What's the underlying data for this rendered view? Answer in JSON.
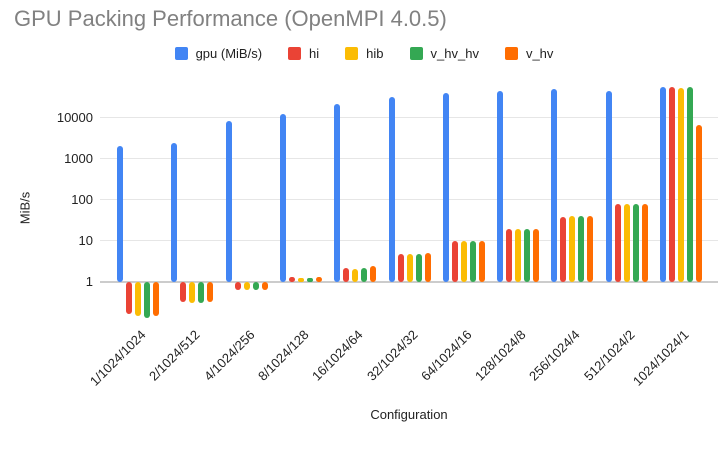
{
  "title": "GPU Packing Performance (OpenMPI 4.0.5)",
  "chart_data": {
    "type": "bar",
    "title": "GPU Packing Performance (OpenMPI 4.0.5)",
    "xlabel": "Configuration",
    "ylabel": "MiB/s",
    "y_scale": "log",
    "grid": true,
    "legend_position": "top",
    "ylim": [
      0.1,
      63000
    ],
    "y_ticks": [
      1,
      10,
      100,
      1000,
      10000
    ],
    "categories": [
      "1/1024/1024",
      "2/1024/512",
      "4/1024/256",
      "8/1024/128",
      "16/1024/64",
      "32/1024/32",
      "64/1024/16",
      "128/1024/8",
      "256/1024/4",
      "512/1024/2",
      "1024/1024/1"
    ],
    "series": [
      {
        "name": "gpu (MiB/s)",
        "color": "#4285F4",
        "values": [
          2100,
          2500,
          8200,
          12500,
          22000,
          32000,
          41000,
          45000,
          50000,
          45000,
          55000
        ]
      },
      {
        "name": "hi",
        "color": "#EA4335",
        "values": [
          0.17,
          0.32,
          0.65,
          1.3,
          2.2,
          4.8,
          10,
          19.5,
          39,
          78,
          55000
        ]
      },
      {
        "name": "hib",
        "color": "#FBBC04",
        "values": [
          0.145,
          0.31,
          0.63,
          1.25,
          2.1,
          4.9,
          10,
          19,
          41,
          80,
          52000
        ]
      },
      {
        "name": "v_hv_hv",
        "color": "#34A853",
        "values": [
          0.135,
          0.3,
          0.62,
          1.25,
          2.2,
          4.9,
          10,
          20,
          40,
          79,
          57000
        ]
      },
      {
        "name": "v_hv",
        "color": "#FF6D01",
        "values": [
          0.145,
          0.32,
          0.64,
          1.3,
          2.4,
          5.0,
          10,
          19,
          40,
          79,
          6500
        ]
      }
    ]
  }
}
